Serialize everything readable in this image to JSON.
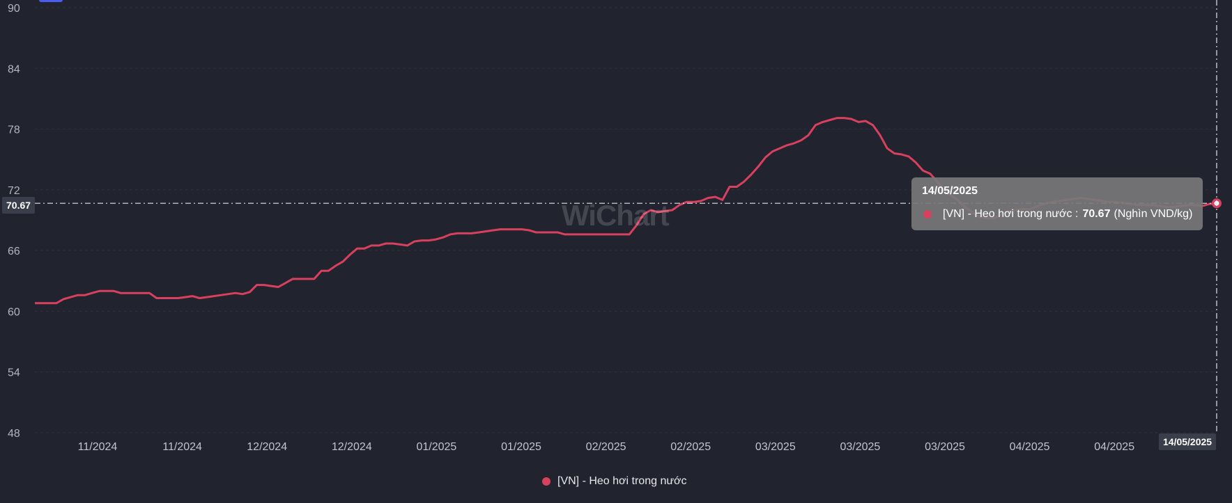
{
  "chart_data": {
    "type": "line",
    "title": "",
    "xlabel": "",
    "ylabel": "",
    "ylim": [
      48,
      90
    ],
    "y_ticks": [
      48,
      54,
      60,
      66,
      72,
      78,
      84,
      90
    ],
    "x_tick_labels": [
      "11/2024",
      "11/2024",
      "12/2024",
      "12/2024",
      "01/2025",
      "01/2025",
      "02/2025",
      "02/2025",
      "03/2025",
      "03/2025",
      "03/2025",
      "04/2025",
      "04/2025"
    ],
    "grid": true,
    "legend_position": "bottom",
    "series": [
      {
        "name": "[VN] - Heo hơi trong nước",
        "color": "#d8415e",
        "values": [
          60.8,
          60.8,
          60.8,
          60.8,
          61.2,
          61.4,
          61.6,
          61.6,
          61.8,
          62.0,
          62.0,
          62.0,
          61.8,
          61.8,
          61.8,
          61.8,
          61.8,
          61.3,
          61.3,
          61.3,
          61.3,
          61.4,
          61.5,
          61.3,
          61.4,
          61.5,
          61.6,
          61.7,
          61.8,
          61.7,
          61.9,
          62.6,
          62.6,
          62.5,
          62.4,
          62.8,
          63.2,
          63.2,
          63.2,
          63.2,
          64.0,
          64.0,
          64.5,
          64.9,
          65.6,
          66.2,
          66.2,
          66.5,
          66.5,
          66.7,
          66.7,
          66.6,
          66.5,
          66.9,
          67.0,
          67.0,
          67.1,
          67.3,
          67.6,
          67.7,
          67.7,
          67.7,
          67.8,
          67.9,
          68.0,
          68.1,
          68.1,
          68.1,
          68.1,
          68.0,
          67.8,
          67.8,
          67.8,
          67.8,
          67.6,
          67.6,
          67.6,
          67.6,
          67.6,
          67.6,
          67.6,
          67.6,
          67.6,
          67.6,
          68.5,
          69.6,
          70.0,
          69.8,
          69.9,
          70.0,
          70.5,
          70.8,
          70.8,
          70.9,
          71.2,
          71.3,
          71.0,
          72.3,
          72.3,
          72.8,
          73.5,
          74.3,
          75.2,
          75.8,
          76.1,
          76.4,
          76.6,
          76.9,
          77.4,
          78.4,
          78.7,
          78.9,
          79.1,
          79.1,
          79.0,
          78.7,
          78.8,
          78.4,
          77.4,
          76.1,
          75.6,
          75.5,
          75.3,
          74.7,
          73.9,
          73.6,
          72.8,
          71.9,
          71.4,
          70.9,
          70.2,
          69.7,
          69.3,
          69.2,
          69.2,
          69.6,
          69.9,
          70.0,
          70.1,
          70.1,
          70.4,
          70.6,
          70.8,
          70.9,
          71.0,
          71.1,
          71.2,
          71.1,
          71.0,
          70.9,
          70.8,
          70.8,
          70.7,
          70.6,
          70.5,
          70.5,
          70.5,
          70.4,
          70.3,
          70.3,
          70.4,
          70.5,
          70.5,
          70.4,
          70.6,
          70.67
        ]
      }
    ]
  },
  "cursor": {
    "y_value_label": "70.67",
    "x_date_label": "14/05/2025"
  },
  "tooltip": {
    "date": "14/05/2025",
    "series_name": "[VN] - Heo hơi trong nước :",
    "value": "70.67",
    "unit": "(Nghìn VND/kg)"
  },
  "legend": {
    "label": "[VN] - Heo hơi trong nước"
  },
  "watermark": "WiChart"
}
